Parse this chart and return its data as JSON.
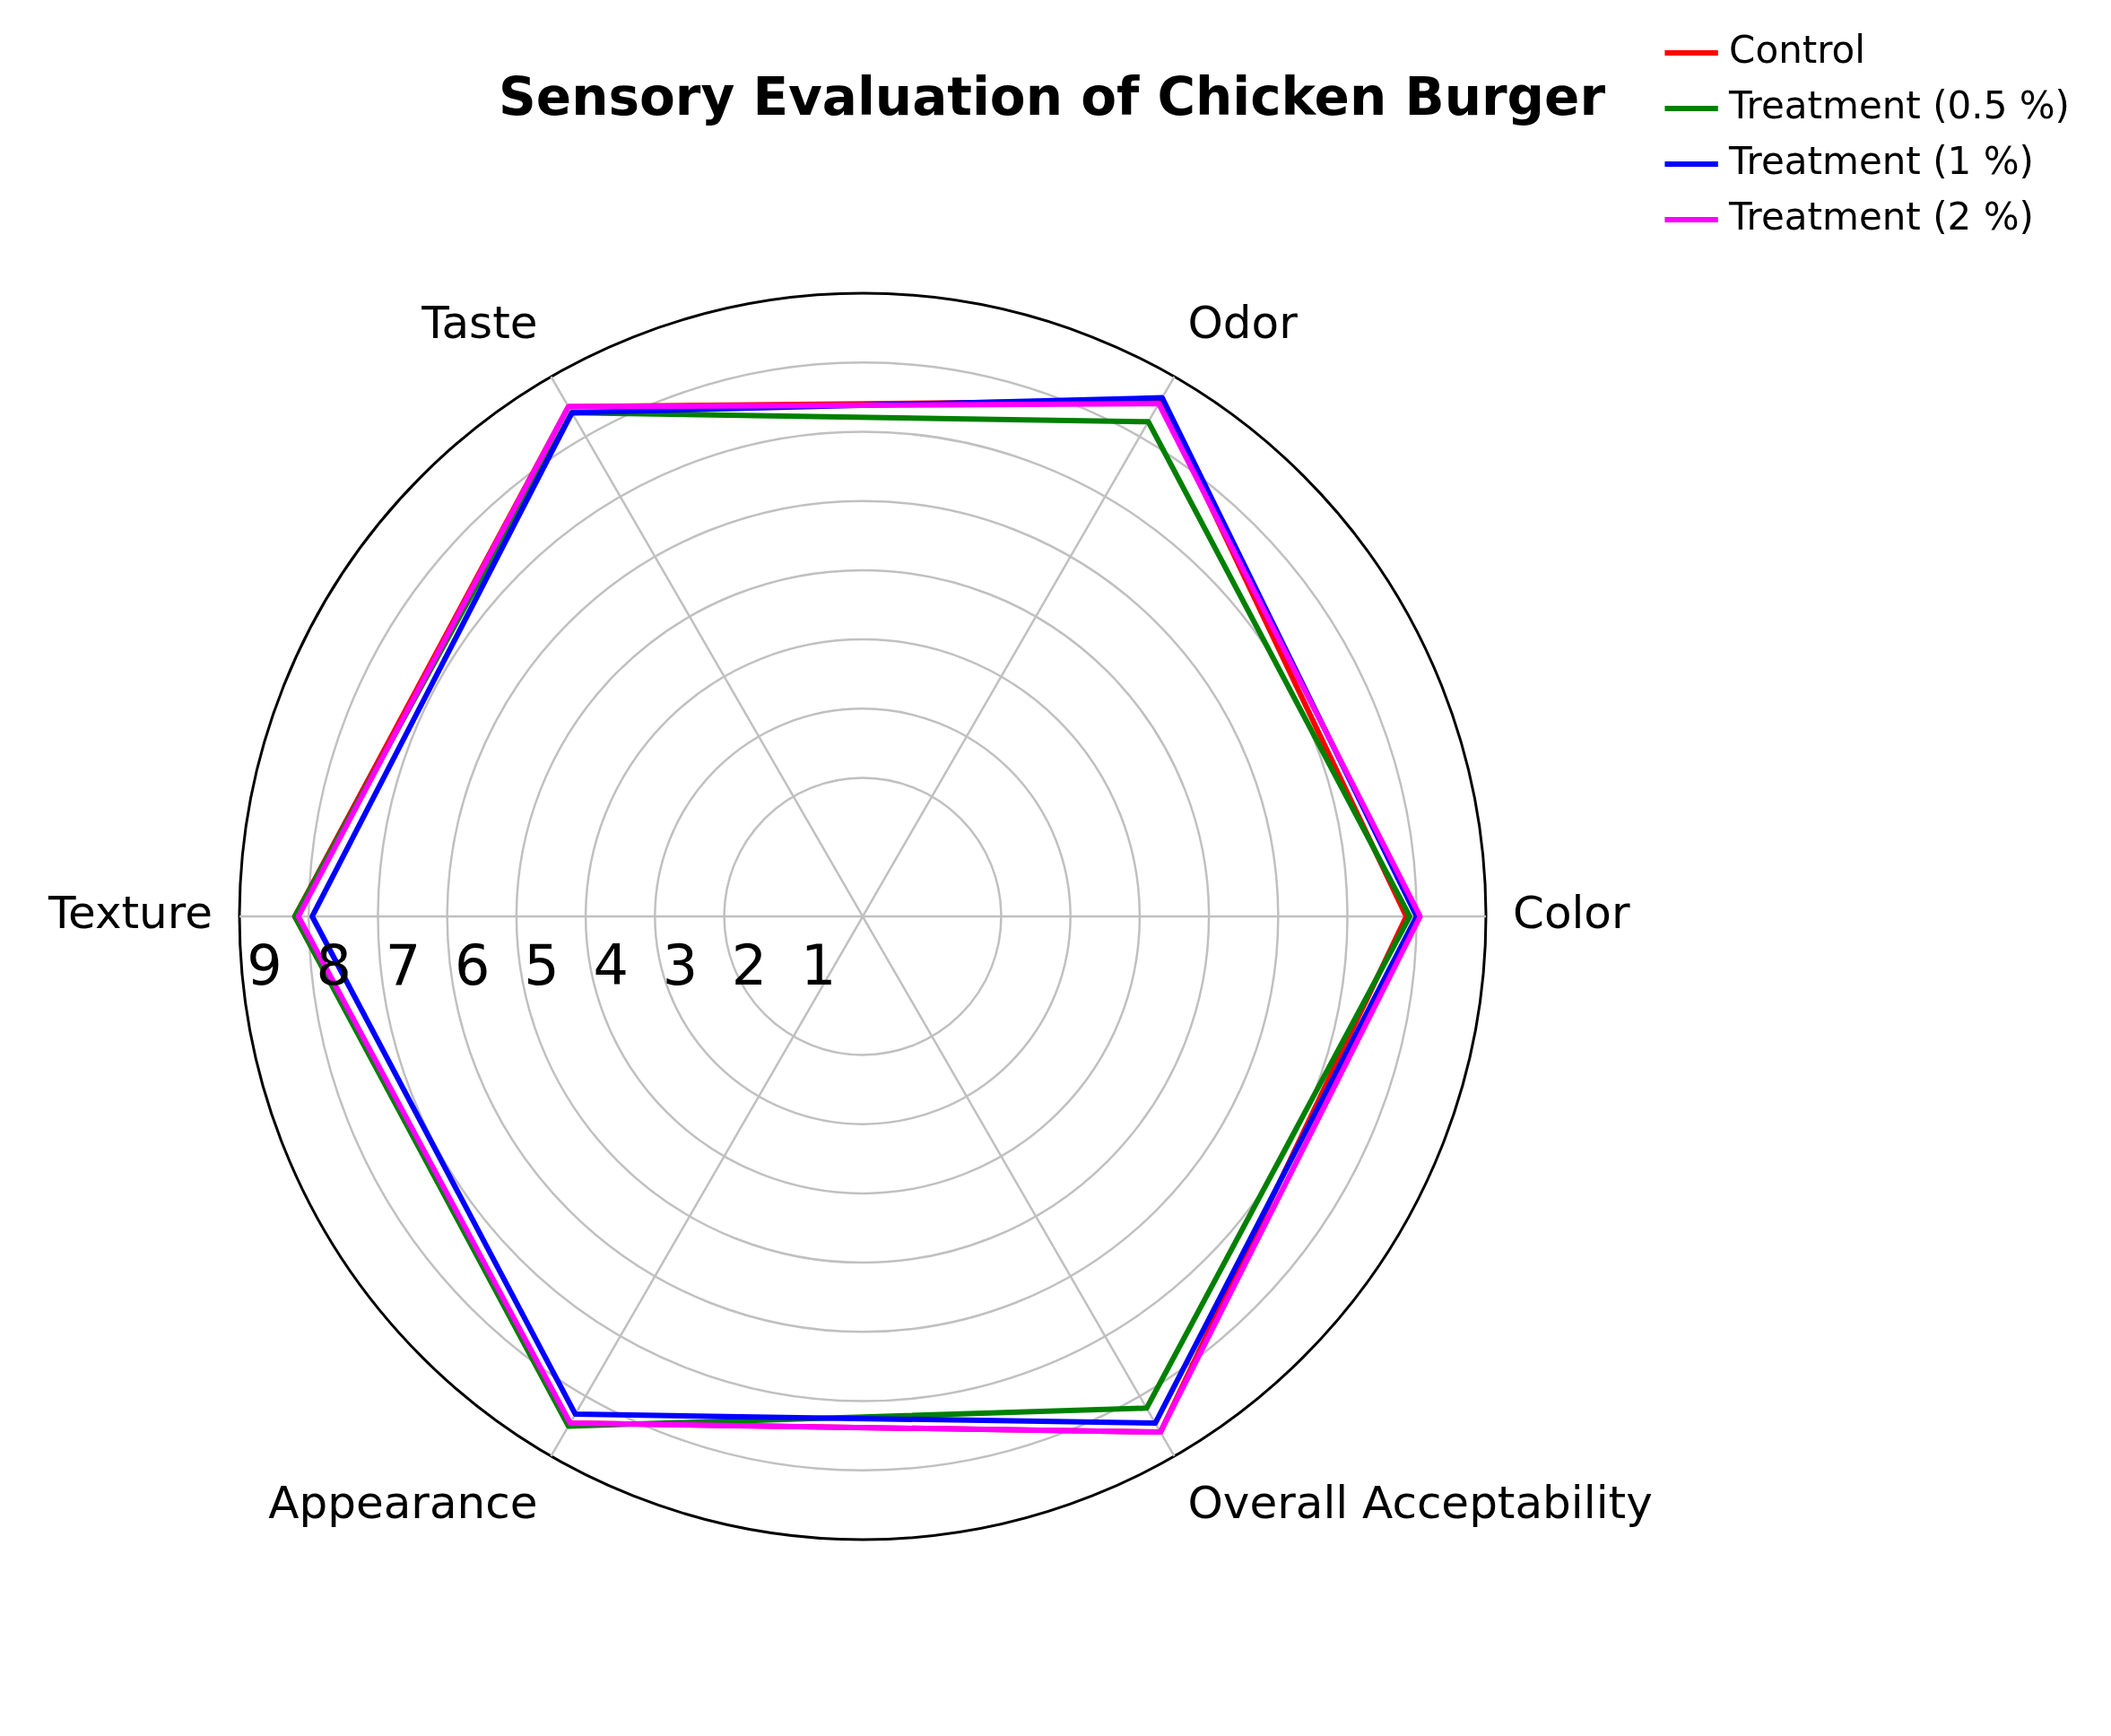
{
  "chart_data": {
    "type": "radar",
    "title": "Sensory Evaluation of Chicken Burger",
    "categories": [
      "Odor",
      "Color",
      "Overall Acceptability",
      "Appearance",
      "Texture",
      "Taste"
    ],
    "series": [
      {
        "name": "Control",
        "color": "#ff0000",
        "values": [
          8.6,
          7.85,
          8.6,
          8.45,
          8.2,
          8.5
        ]
      },
      {
        "name": "Treatment (0.5 %)",
        "color": "#008000",
        "values": [
          8.25,
          7.9,
          8.2,
          8.5,
          8.2,
          8.4
        ]
      },
      {
        "name": "Treatment (1 %)",
        "color": "#0000ff",
        "values": [
          8.65,
          8.0,
          8.45,
          8.3,
          7.95,
          8.4
        ]
      },
      {
        "name": "Treatment (2 %)",
        "color": "#ff00ff",
        "values": [
          8.55,
          8.05,
          8.6,
          8.45,
          8.15,
          8.5
        ]
      }
    ],
    "ylim": [
      0,
      9
    ],
    "yticks": [
      1,
      2,
      3,
      4,
      5,
      6,
      7,
      8,
      9
    ],
    "grid": true,
    "legend": "top right",
    "marker": "none",
    "line_style": "solid"
  }
}
